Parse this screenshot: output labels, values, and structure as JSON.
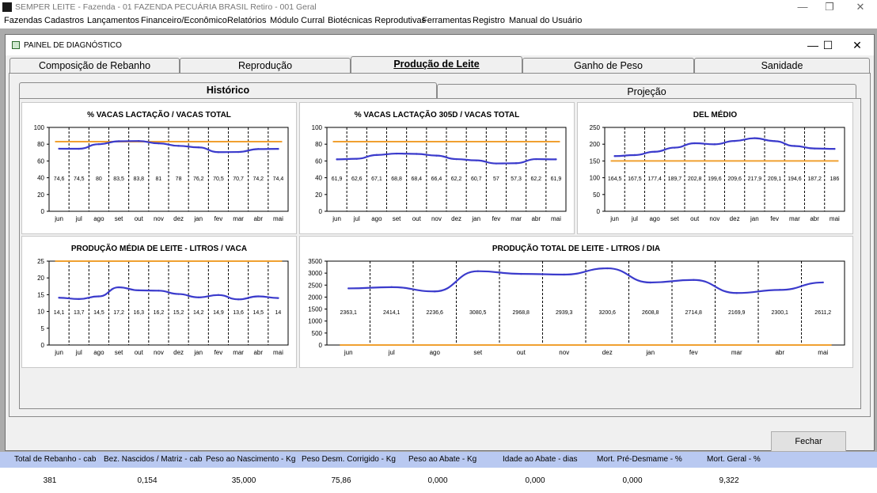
{
  "window": {
    "title": "SEMPER LEITE - Fazenda - 01  FAZENDA PECUÁRIA BRASIL   Retiro - 001  Geral",
    "controls": {
      "minimize": "—",
      "restore": "❐",
      "close": "✕"
    }
  },
  "menu": [
    {
      "label": "Fazendas"
    },
    {
      "label": "Cadastros"
    },
    {
      "label": "Lançamentos"
    },
    {
      "label": "Financeiro/Econômico"
    },
    {
      "label": "Relatórios"
    },
    {
      "label": "Módulo Curral"
    },
    {
      "label": "Biotécnicas Reprodutivas"
    },
    {
      "label": "Ferramentas"
    },
    {
      "label": "Registro"
    },
    {
      "label": "Manual do Usuário"
    }
  ],
  "dialog": {
    "title": "PAINEL DE DIAGNÓSTICO",
    "controls": {
      "minimize": "—",
      "maximize": "☐",
      "close": "✕"
    },
    "tabs": [
      {
        "label": "Composição de Rebanho"
      },
      {
        "label": "Reprodução"
      },
      {
        "label": "Produção de Leite"
      },
      {
        "label": "Ganho de Peso"
      },
      {
        "label": "Sanidade"
      }
    ],
    "active_tab": "Produção de Leite",
    "subtabs": [
      {
        "label": "Histórico"
      },
      {
        "label": "Projeção"
      }
    ],
    "active_subtab": "Histórico",
    "close_button": "Fechar"
  },
  "colors": {
    "series": "#3b3bcc",
    "reference": "#f0a030",
    "grid": "#000000"
  },
  "chart_data": [
    {
      "type": "line",
      "title": "% VACAS LACTAÇÃO / VACAS TOTAL",
      "categories": [
        "jun",
        "jul",
        "ago",
        "set",
        "out",
        "nov",
        "dez",
        "jan",
        "fev",
        "mar",
        "abr",
        "mai"
      ],
      "values": [
        74.6,
        74.5,
        80,
        83.5,
        83.8,
        81,
        78,
        76.2,
        70.5,
        70.7,
        74.2,
        74.4
      ],
      "labels": [
        "74,6",
        "74,5",
        "80",
        "83,5",
        "83,8",
        "81",
        "78",
        "76,2",
        "70,5",
        "70,7",
        "74,2",
        "74,4"
      ],
      "reference": 83,
      "ylim": [
        0,
        100
      ],
      "yticks": [
        0,
        20,
        40,
        60,
        80,
        100
      ]
    },
    {
      "type": "line",
      "title": "% VACAS LACTAÇÃO 305D / VACAS TOTAL",
      "categories": [
        "jun",
        "jul",
        "ago",
        "set",
        "out",
        "nov",
        "dez",
        "jan",
        "fev",
        "mar",
        "abr",
        "mai"
      ],
      "values": [
        61.9,
        62.6,
        67.1,
        68.8,
        68.4,
        66.4,
        62.2,
        60.7,
        57,
        57.3,
        62.2,
        61.9
      ],
      "labels": [
        "61,9",
        "62,6",
        "67,1",
        "68,8",
        "68,4",
        "66,4",
        "62,2",
        "60,7",
        "57",
        "57,3",
        "62,2",
        "61,9"
      ],
      "reference": 83,
      "ylim": [
        0,
        100
      ],
      "yticks": [
        0,
        20,
        40,
        60,
        80,
        100
      ]
    },
    {
      "type": "line",
      "title": "DEL MÉDIO",
      "categories": [
        "jun",
        "jul",
        "ago",
        "set",
        "out",
        "nov",
        "dez",
        "jan",
        "fev",
        "mar",
        "abr",
        "mai"
      ],
      "values": [
        164.5,
        167.5,
        177.4,
        189.7,
        202.8,
        199.6,
        209.6,
        217.9,
        209.1,
        194.6,
        187.2,
        186
      ],
      "labels": [
        "164,5",
        "167,5",
        "177,4",
        "189,7",
        "202,8",
        "199,6",
        "209,6",
        "217,9",
        "209,1",
        "194,6",
        "187,2",
        "186"
      ],
      "reference": 150,
      "ylim": [
        0,
        250
      ],
      "yticks": [
        0,
        50,
        100,
        150,
        200,
        250
      ]
    },
    {
      "type": "line",
      "title": "PRODUÇÃO MÉDIA DE LEITE - LITROS / VACA",
      "categories": [
        "jun",
        "jul",
        "ago",
        "set",
        "out",
        "nov",
        "dez",
        "jan",
        "fev",
        "mar",
        "abr",
        "mai"
      ],
      "values": [
        14.1,
        13.7,
        14.5,
        17.2,
        16.3,
        16.2,
        15.2,
        14.2,
        14.9,
        13.6,
        14.5,
        14
      ],
      "labels": [
        "14,1",
        "13,7",
        "14,5",
        "17,2",
        "16,3",
        "16,2",
        "15,2",
        "14,2",
        "14,9",
        "13,6",
        "14,5",
        "14"
      ],
      "reference": 25,
      "ylim": [
        0,
        25
      ],
      "yticks": [
        0,
        5,
        10,
        15,
        20,
        25
      ]
    },
    {
      "type": "line",
      "title": "PRODUÇÃO TOTAL DE LEITE - LITROS / DIA",
      "categories": [
        "jun",
        "jul",
        "ago",
        "set",
        "out",
        "nov",
        "dez",
        "jan",
        "fev",
        "mar",
        "abr",
        "mai"
      ],
      "values": [
        2363.1,
        2414.1,
        2236.6,
        3080.5,
        2968.8,
        2939.3,
        3200.6,
        2608.8,
        2714.8,
        2169.9,
        2300.1,
        2611.2
      ],
      "labels": [
        "2363,1",
        "2414,1",
        "2236,6",
        "3080,5",
        "2968,8",
        "2939,3",
        "3200,6",
        "2608,8",
        "2714,8",
        "2169,9",
        "2300,1",
        "2611,2"
      ],
      "reference": 0,
      "ylim": [
        0,
        3500
      ],
      "yticks": [
        0,
        500,
        1000,
        1500,
        2000,
        2500,
        3000,
        3500
      ]
    }
  ],
  "stats": [
    {
      "label": "Total de Rebanho - cab",
      "value": "381"
    },
    {
      "label": "Bez. Nascidos / Matriz - cab",
      "value": "0,154"
    },
    {
      "label": "Peso ao Nascimento - Kg",
      "value": "35,000"
    },
    {
      "label": "Peso Desm. Corrigido - Kg",
      "value": "75,86"
    },
    {
      "label": "Peso ao Abate - Kg",
      "value": "0,000"
    },
    {
      "label": "Idade ao Abate - dias",
      "value": "0,000"
    },
    {
      "label": "Mort. Pré-Desmame - %",
      "value": "0,000"
    },
    {
      "label": "Mort. Geral - %",
      "value": "9,322"
    }
  ]
}
